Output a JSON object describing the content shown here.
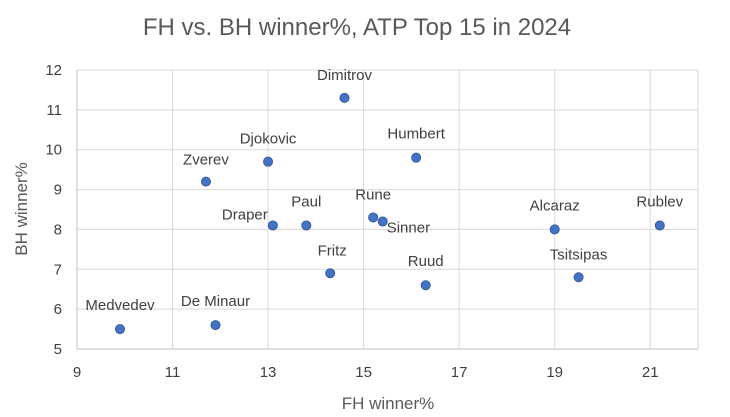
{
  "chart_data": {
    "type": "scatter",
    "title": "FH vs. BH winner%, ATP Top 15 in 2024",
    "xlabel": "FH winner%",
    "ylabel": "BH winner%",
    "xlim": [
      9,
      22
    ],
    "ylim": [
      5,
      12
    ],
    "x_ticks": [
      9,
      11,
      13,
      15,
      17,
      19,
      21
    ],
    "y_ticks": [
      5,
      6,
      7,
      8,
      9,
      10,
      11,
      12
    ],
    "grid": true,
    "legend": "none",
    "color": "#4472c4",
    "points": [
      {
        "label": "Dimitrov",
        "x": 14.6,
        "y": 11.3
      },
      {
        "label": "Djokovic",
        "x": 13.0,
        "y": 9.7
      },
      {
        "label": "Zverev",
        "x": 11.7,
        "y": 9.2
      },
      {
        "label": "Humbert",
        "x": 16.1,
        "y": 9.8
      },
      {
        "label": "Rune",
        "x": 15.2,
        "y": 8.3
      },
      {
        "label": "Sinner",
        "x": 15.4,
        "y": 8.2
      },
      {
        "label": "Paul",
        "x": 13.8,
        "y": 8.1
      },
      {
        "label": "Draper",
        "x": 13.1,
        "y": 8.1
      },
      {
        "label": "Alcaraz",
        "x": 19.0,
        "y": 8.0
      },
      {
        "label": "Rublev",
        "x": 21.2,
        "y": 8.1
      },
      {
        "label": "Tsitsipas",
        "x": 19.5,
        "y": 6.8
      },
      {
        "label": "Fritz",
        "x": 14.3,
        "y": 6.9
      },
      {
        "label": "Ruud",
        "x": 16.3,
        "y": 6.6
      },
      {
        "label": "De Minaur",
        "x": 11.9,
        "y": 5.6
      },
      {
        "label": "Medvedev",
        "x": 9.9,
        "y": 5.5
      }
    ]
  }
}
